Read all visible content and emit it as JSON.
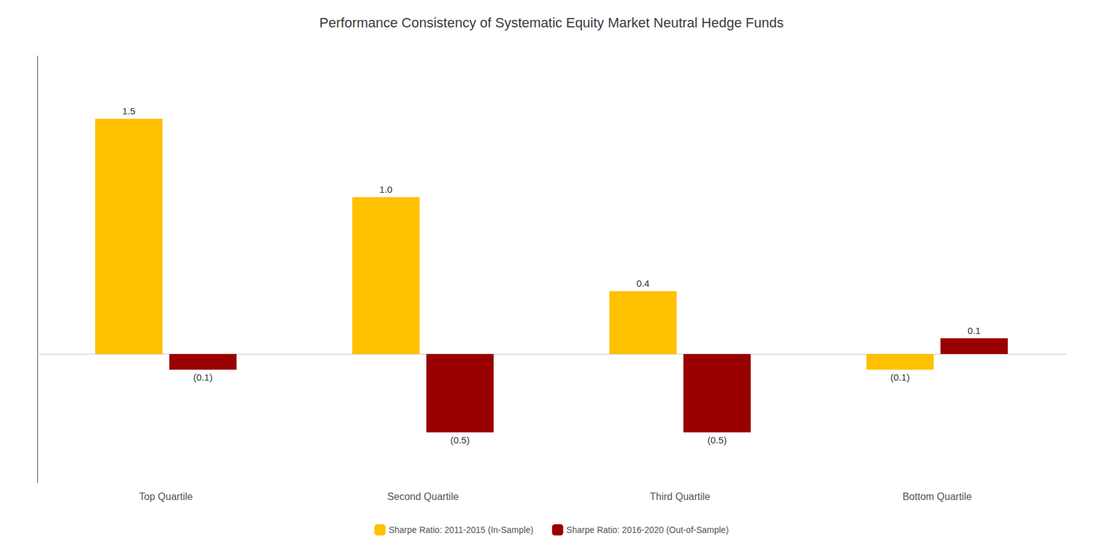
{
  "chart_data": {
    "type": "bar",
    "title": "Performance Consistency of Systematic Equity Market Neutral Hedge Funds",
    "categories": [
      "Top Quartile",
      "Second Quartile",
      "Third Quartile",
      "Bottom Quartile"
    ],
    "series": [
      {
        "name": "Sharpe Ratio: 2011-2015 (In-Sample)",
        "color": "#FFC000",
        "values": [
          1.5,
          1.0,
          0.4,
          -0.1
        ],
        "value_labels": [
          "1.5",
          "1.0",
          "0.4",
          "(0.1)"
        ]
      },
      {
        "name": "Sharpe Ratio: 2016-2020 (Out-of-Sample)",
        "color": "#990000",
        "values": [
          -0.1,
          -0.5,
          -0.5,
          0.1
        ],
        "value_labels": [
          "(0.1)",
          "(0.5)",
          "(0.5)",
          "0.1"
        ]
      }
    ],
    "ylim": [
      -0.82,
      1.9
    ],
    "data_labels": true,
    "tick_labels": "x",
    "grid": false,
    "legend": "bottom"
  }
}
